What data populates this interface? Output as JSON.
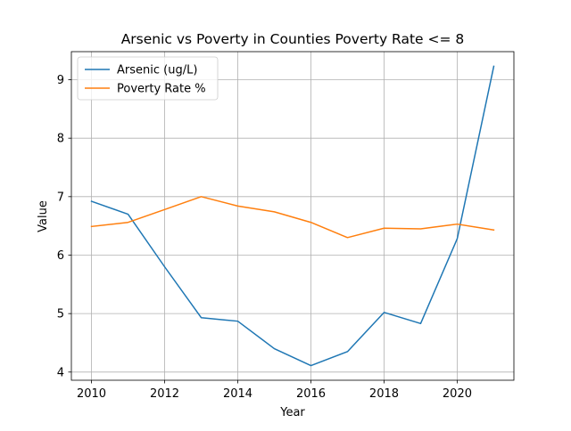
{
  "chart_data": {
    "type": "line",
    "title": "Arsenic vs Poverty in Counties Poverty Rate <= 8",
    "xlabel": "Year",
    "ylabel": "Value",
    "x": [
      2010,
      2011,
      2012,
      2013,
      2014,
      2015,
      2016,
      2017,
      2018,
      2019,
      2020,
      2021
    ],
    "series": [
      {
        "name": "Arsenic (ug/L)",
        "color": "#1f77b4",
        "values": [
          6.92,
          6.7,
          5.8,
          4.93,
          4.87,
          4.4,
          4.11,
          4.35,
          5.02,
          4.83,
          6.28,
          9.23
        ]
      },
      {
        "name": "Poverty Rate %",
        "color": "#ff7f0e",
        "values": [
          6.49,
          6.56,
          6.78,
          7.0,
          6.84,
          6.74,
          6.56,
          6.3,
          6.46,
          6.45,
          6.53,
          6.43
        ]
      }
    ],
    "xlim": [
      2009.45,
      2021.55
    ],
    "ylim": [
      3.86,
      9.48
    ],
    "xticks": [
      "2010",
      "2012",
      "2014",
      "2016",
      "2018",
      "2020"
    ],
    "yticks": [
      "4",
      "5",
      "6",
      "7",
      "8",
      "9"
    ],
    "grid": true,
    "legend_position": "top-left"
  }
}
